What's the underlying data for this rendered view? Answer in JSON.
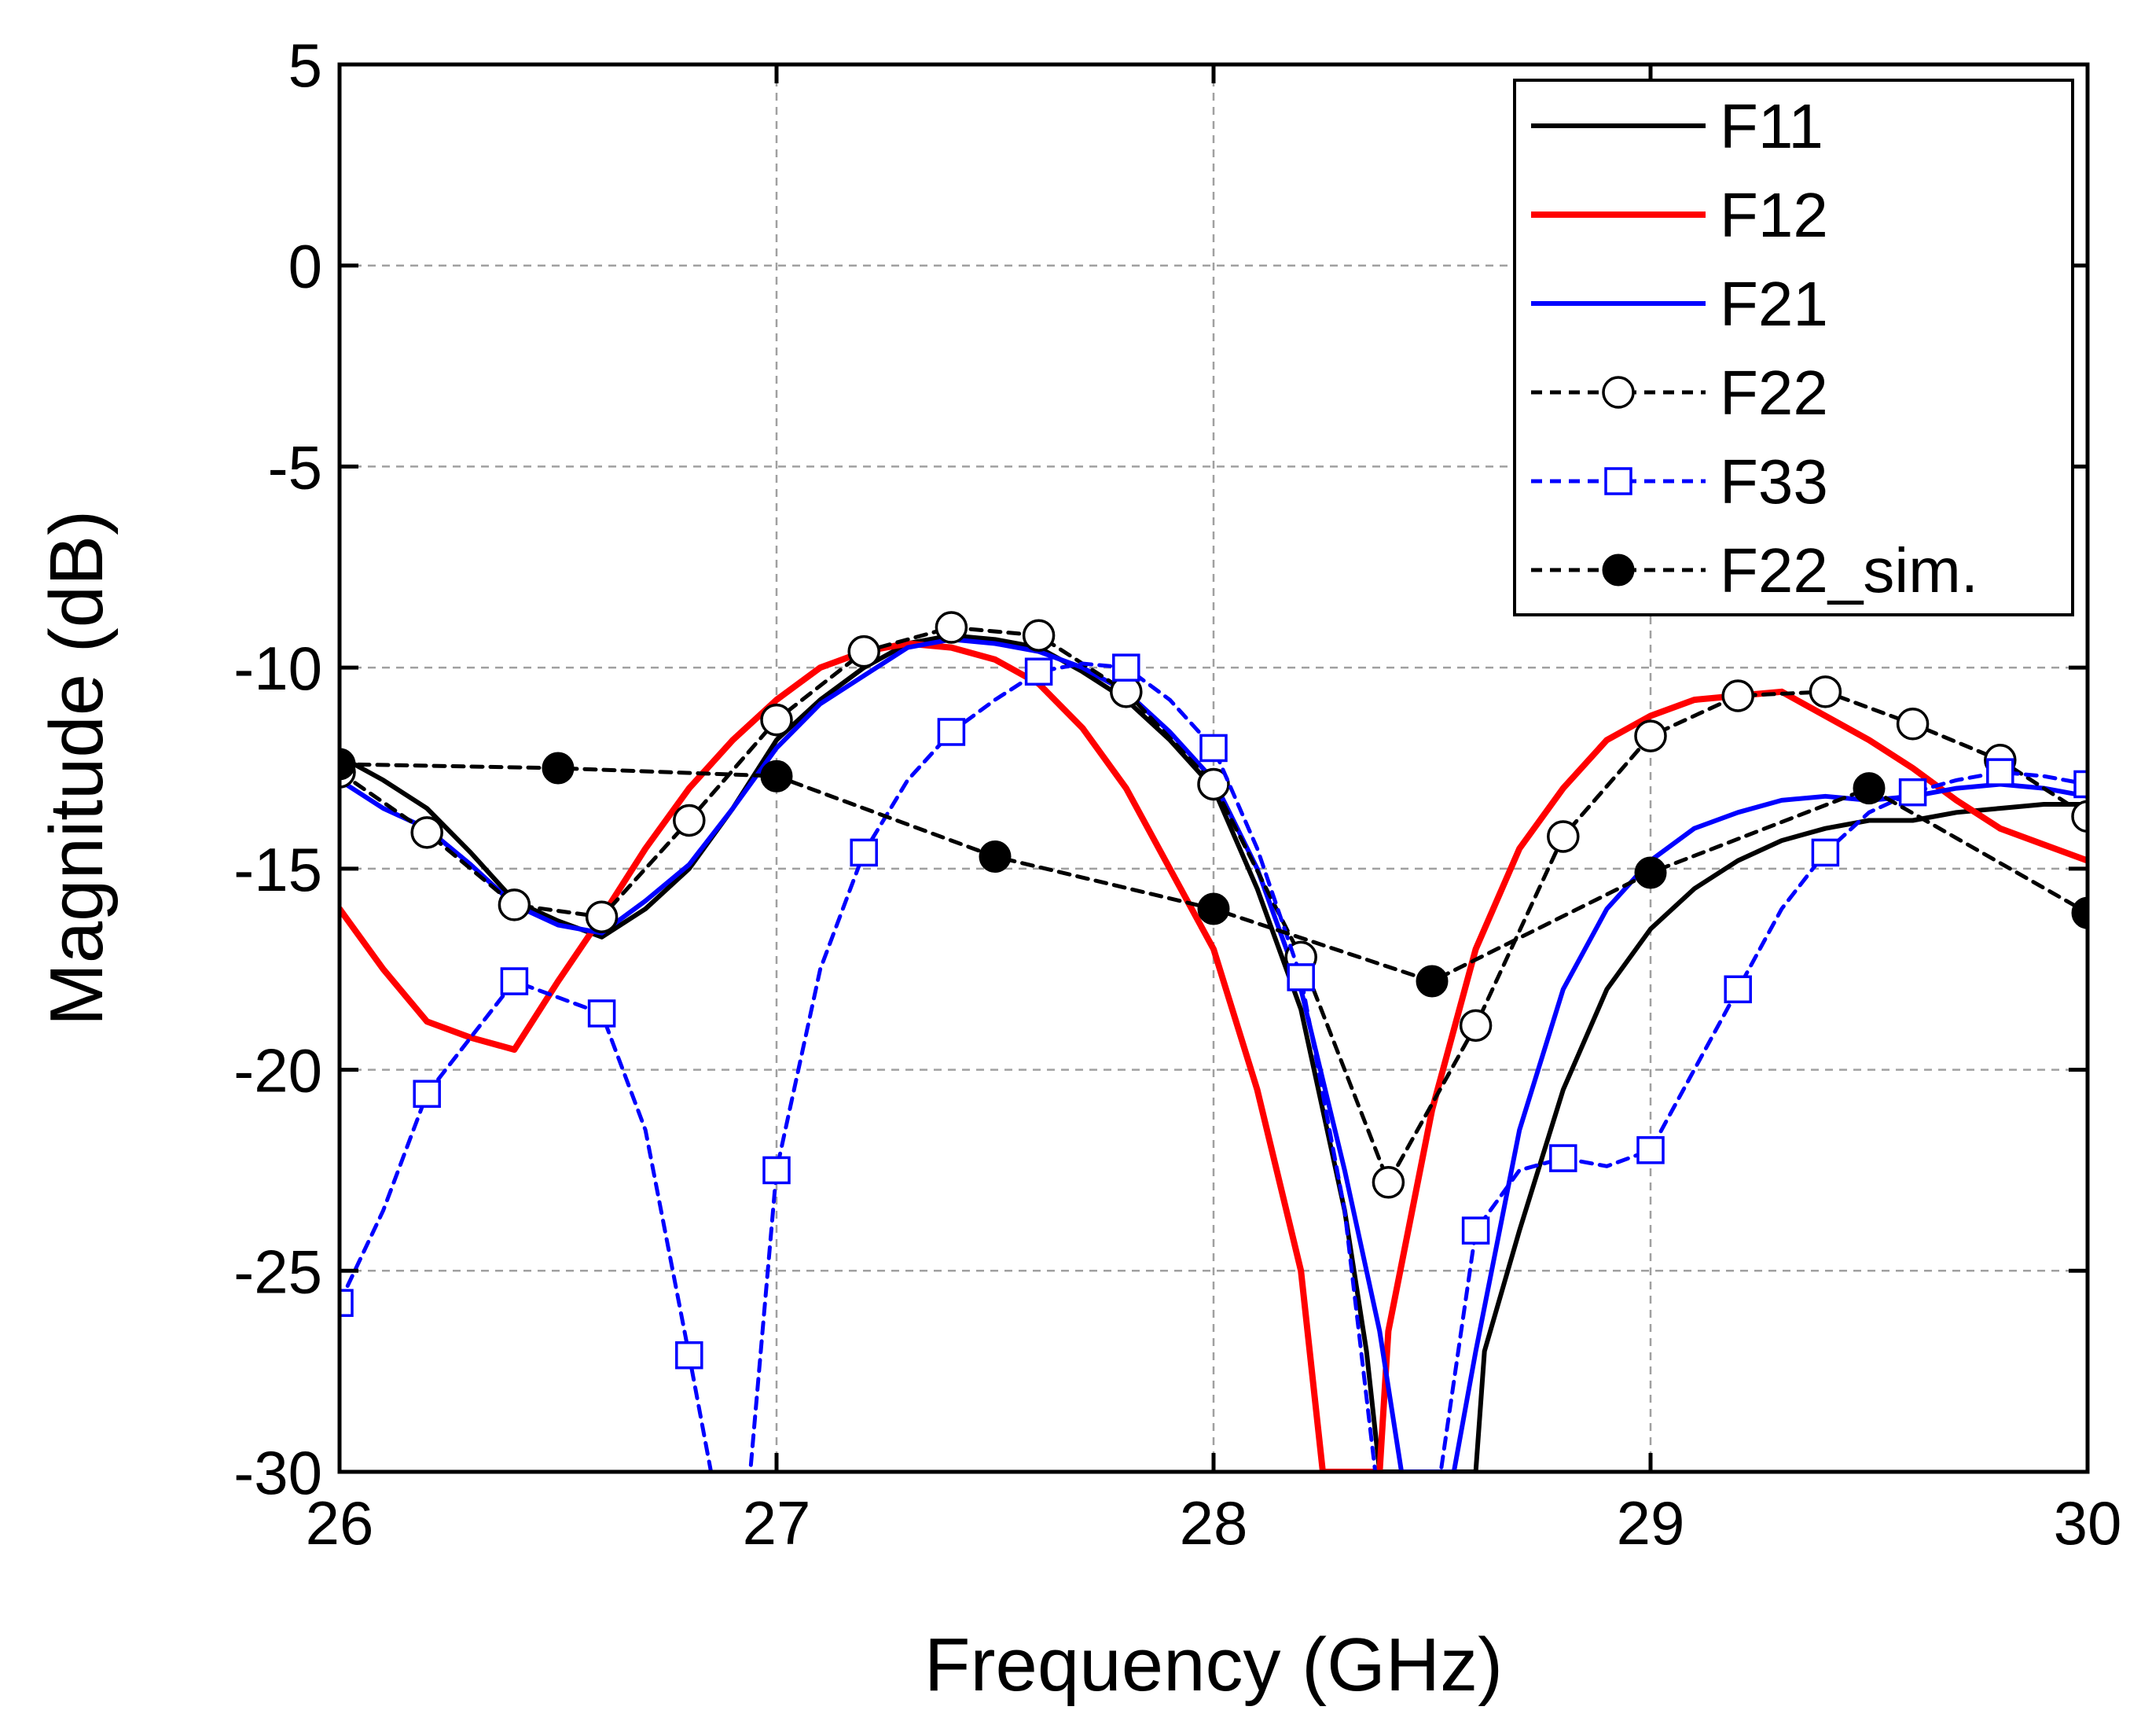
{
  "chart_data": {
    "type": "line",
    "title": "",
    "xlabel": "Frequency (GHz)",
    "ylabel": "Magnitude (dB)",
    "xlim": [
      26,
      30
    ],
    "ylim": [
      -30,
      5
    ],
    "xticks": [
      26,
      27,
      28,
      29,
      30
    ],
    "yticks": [
      5,
      0,
      -5,
      -10,
      -15,
      -20,
      -25,
      -30
    ],
    "grid": true,
    "legend_position": "top-right",
    "series": [
      {
        "name": "F11",
        "color": "#000000",
        "dash": "solid",
        "marker": "none",
        "x": [
          26.0,
          26.1,
          26.2,
          26.3,
          26.4,
          26.5,
          26.6,
          26.7,
          26.8,
          26.9,
          27.0,
          27.1,
          27.2,
          27.3,
          27.4,
          27.5,
          27.6,
          27.7,
          27.8,
          27.9,
          28.0,
          28.1,
          28.2,
          28.3,
          28.35,
          28.38,
          28.6,
          28.62,
          28.7,
          28.8,
          28.9,
          29.0,
          29.1,
          29.2,
          29.3,
          29.4,
          29.5,
          29.6,
          29.7,
          29.8,
          29.9,
          30.0
        ],
        "y": [
          -12.2,
          -12.8,
          -13.5,
          -14.6,
          -15.8,
          -16.3,
          -16.7,
          -16.0,
          -15.0,
          -13.5,
          -11.8,
          -10.8,
          -10.0,
          -9.4,
          -9.2,
          -9.3,
          -9.5,
          -10.1,
          -10.8,
          -11.8,
          -13.0,
          -15.5,
          -18.5,
          -23.5,
          -27.0,
          -30.0,
          -30.0,
          -27.0,
          -24.0,
          -20.5,
          -18.0,
          -16.5,
          -15.5,
          -14.8,
          -14.3,
          -14.0,
          -13.8,
          -13.8,
          -13.6,
          -13.5,
          -13.4,
          -13.4
        ]
      },
      {
        "name": "F12",
        "color": "#ff0000",
        "dash": "solid",
        "marker": "none",
        "x": [
          26.0,
          26.1,
          26.2,
          26.3,
          26.4,
          26.5,
          26.6,
          26.7,
          26.8,
          26.9,
          27.0,
          27.1,
          27.2,
          27.3,
          27.4,
          27.5,
          27.6,
          27.7,
          27.8,
          27.9,
          28.0,
          28.1,
          28.2,
          28.25,
          28.38,
          28.4,
          28.5,
          28.6,
          28.7,
          28.8,
          28.9,
          29.0,
          29.1,
          29.2,
          29.3,
          29.4,
          29.5,
          29.6,
          29.7,
          29.8,
          29.9,
          30.0
        ],
        "y": [
          -16.0,
          -17.5,
          -18.8,
          -19.2,
          -19.5,
          -17.8,
          -16.2,
          -14.5,
          -13.0,
          -11.8,
          -10.8,
          -10.0,
          -9.6,
          -9.4,
          -9.5,
          -9.8,
          -10.4,
          -11.5,
          -13.0,
          -15.0,
          -17.0,
          -20.5,
          -25.0,
          -30.0,
          -30.0,
          -26.5,
          -21.0,
          -17.0,
          -14.5,
          -13.0,
          -11.8,
          -11.2,
          -10.8,
          -10.7,
          -10.6,
          -11.2,
          -11.8,
          -12.5,
          -13.3,
          -14.0,
          -14.4,
          -14.8
        ]
      },
      {
        "name": "F21",
        "color": "#0000ff",
        "dash": "solid",
        "marker": "none",
        "x": [
          26.0,
          26.1,
          26.2,
          26.3,
          26.4,
          26.5,
          26.6,
          26.7,
          26.8,
          26.9,
          27.0,
          27.1,
          27.2,
          27.3,
          27.4,
          27.5,
          27.6,
          27.7,
          27.8,
          27.9,
          28.0,
          28.1,
          28.2,
          28.3,
          28.38,
          28.43,
          28.55,
          28.6,
          28.7,
          28.8,
          28.9,
          29.0,
          29.1,
          29.2,
          29.3,
          29.4,
          29.5,
          29.6,
          29.7,
          29.8,
          29.9,
          30.0
        ],
        "y": [
          -12.8,
          -13.5,
          -14.0,
          -14.9,
          -15.9,
          -16.4,
          -16.6,
          -15.8,
          -14.9,
          -13.5,
          -12.0,
          -10.9,
          -10.2,
          -9.5,
          -9.3,
          -9.4,
          -9.6,
          -10.0,
          -10.6,
          -11.6,
          -12.8,
          -15.0,
          -18.0,
          -22.5,
          -26.5,
          -30.0,
          -30.0,
          -27.0,
          -21.5,
          -18.0,
          -16.0,
          -14.8,
          -14.0,
          -13.6,
          -13.3,
          -13.2,
          -13.3,
          -13.2,
          -13.0,
          -12.9,
          -13.0,
          -13.2
        ]
      },
      {
        "name": "F22",
        "color": "#000000",
        "dash": "dashed",
        "marker": "open-circle",
        "x": [
          26.0,
          26.2,
          26.4,
          26.6,
          26.8,
          27.0,
          27.2,
          27.4,
          27.6,
          27.8,
          28.0,
          28.2,
          28.4,
          28.6,
          28.8,
          29.0,
          29.2,
          29.4,
          29.6,
          29.8,
          30.0
        ],
        "y": [
          -12.6,
          -14.1,
          -15.9,
          -16.2,
          -13.8,
          -11.3,
          -9.6,
          -9.0,
          -9.2,
          -10.6,
          -12.9,
          -17.2,
          -22.8,
          -18.9,
          -14.2,
          -11.7,
          -10.7,
          -10.6,
          -11.4,
          -12.3,
          -13.7
        ]
      },
      {
        "name": "F33",
        "color": "#0000ff",
        "dash": "dashed",
        "marker": "open-square",
        "x": [
          26.0,
          26.1,
          26.2,
          26.3,
          26.4,
          26.6,
          26.7,
          26.8,
          26.85,
          26.94,
          27.0,
          27.1,
          27.2,
          27.3,
          27.4,
          27.5,
          27.6,
          27.7,
          27.8,
          27.9,
          28.0,
          28.1,
          28.2,
          28.3,
          28.37,
          28.52,
          28.6,
          28.7,
          28.8,
          28.9,
          29.0,
          29.1,
          29.2,
          29.3,
          29.4,
          29.5,
          29.6,
          29.7,
          29.8,
          29.9,
          30.0
        ],
        "y": [
          -25.8,
          -23.5,
          -20.6,
          -19.2,
          -17.8,
          -18.6,
          -21.5,
          -27.1,
          -30.0,
          -30.0,
          -22.5,
          -17.5,
          -14.6,
          -12.8,
          -11.6,
          -10.8,
          -10.1,
          -9.9,
          -10.0,
          -10.8,
          -12.0,
          -14.5,
          -17.7,
          -23.5,
          -30.0,
          -30.0,
          -24.0,
          -22.5,
          -22.2,
          -22.4,
          -22.0,
          -20.0,
          -18.0,
          -16.0,
          -14.6,
          -13.6,
          -13.1,
          -12.8,
          -12.6,
          -12.7,
          -12.9
        ]
      },
      {
        "name": "F22_sim.",
        "color": "#000000",
        "dash": "dashed",
        "marker": "filled-circle",
        "x": [
          26.0,
          26.5,
          27.0,
          27.5,
          28.0,
          28.5,
          29.0,
          29.5,
          30.0
        ],
        "y": [
          -12.4,
          -12.5,
          -12.7,
          -14.7,
          -16.0,
          -17.8,
          -15.1,
          -13.0,
          -16.1
        ]
      }
    ]
  }
}
